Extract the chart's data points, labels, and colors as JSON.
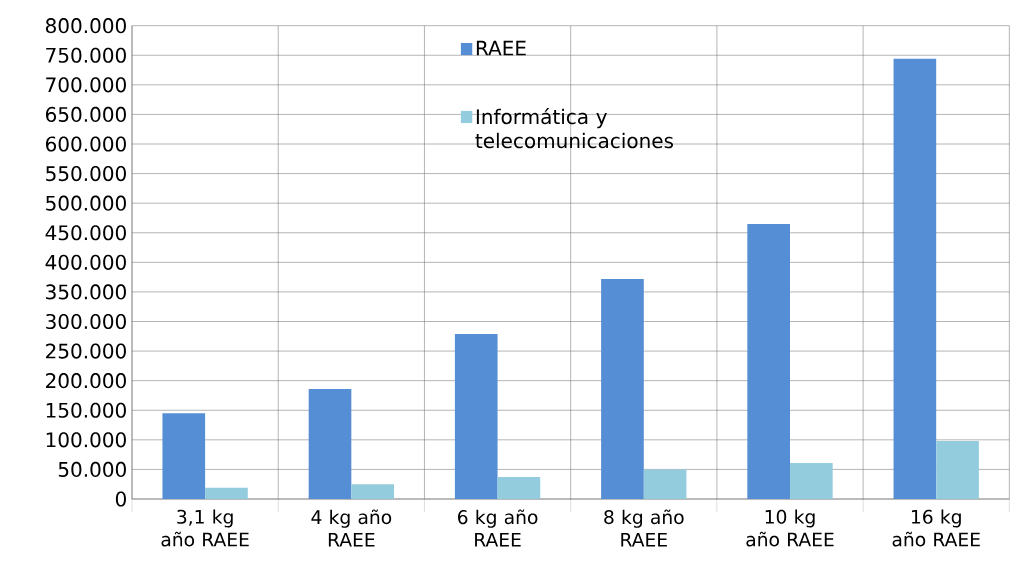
{
  "chart_data": {
    "type": "bar",
    "categories": [
      "3,1 kg año RAEE",
      "4  kg año RAEE",
      "6  kg año RAEE",
      "8  kg año RAEE",
      "10 kg año RAEE",
      "16 kg año RAEE"
    ],
    "series": [
      {
        "name": "RAEE",
        "color": "#558ed5",
        "values": [
          145000,
          186000,
          279000,
          372000,
          465000,
          744000
        ]
      },
      {
        "name": "Informática y telecomunicaciones",
        "color": "#93cddd",
        "values": [
          19000,
          25000,
          37000,
          50000,
          61000,
          98000
        ]
      }
    ],
    "ylim": [
      0,
      800000
    ],
    "yticks": [
      {
        "value": 0,
        "label": "0"
      },
      {
        "value": 50000,
        "label": "50.000"
      },
      {
        "value": 100000,
        "label": "100.000"
      },
      {
        "value": 150000,
        "label": "150.000"
      },
      {
        "value": 200000,
        "label": "200.000"
      },
      {
        "value": 250000,
        "label": "250.000"
      },
      {
        "value": 300000,
        "label": "300.000"
      },
      {
        "value": 350000,
        "label": "350.000"
      },
      {
        "value": 400000,
        "label": "400.000"
      },
      {
        "value": 450000,
        "label": "450.000"
      },
      {
        "value": 500000,
        "label": "500.000"
      },
      {
        "value": 550000,
        "label": "550.000"
      },
      {
        "value": 600000,
        "label": "600.000"
      },
      {
        "value": 650000,
        "label": "650.000"
      },
      {
        "value": 700000,
        "label": "700.000"
      },
      {
        "value": 750000,
        "label": "750.000"
      },
      {
        "value": 800000,
        "label": "800.000"
      }
    ],
    "grid": true,
    "legend": "top"
  }
}
